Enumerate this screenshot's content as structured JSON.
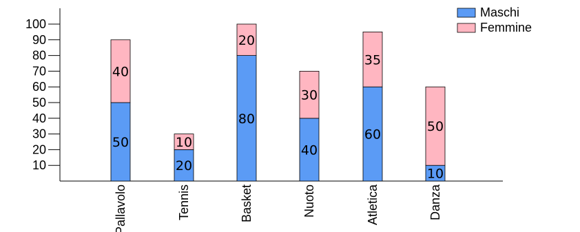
{
  "chart_data": {
    "type": "bar",
    "stacked": true,
    "categories": [
      "Pallavolo",
      "Tennis",
      "Basket",
      "Nuoto",
      "Atletica",
      "Danza"
    ],
    "series": [
      {
        "name": "Maschi",
        "values": [
          50,
          20,
          80,
          40,
          60,
          10
        ],
        "color": "#5b9bf5"
      },
      {
        "name": "Femmine",
        "values": [
          40,
          10,
          20,
          30,
          35,
          50
        ],
        "color": "#ffb6c1"
      }
    ],
    "y_ticks": [
      10,
      20,
      30,
      40,
      50,
      60,
      70,
      80,
      90,
      100
    ],
    "ylim": [
      0,
      110
    ],
    "grid": false,
    "legend_position": "top-right",
    "bar_outline_color": "#000000"
  }
}
